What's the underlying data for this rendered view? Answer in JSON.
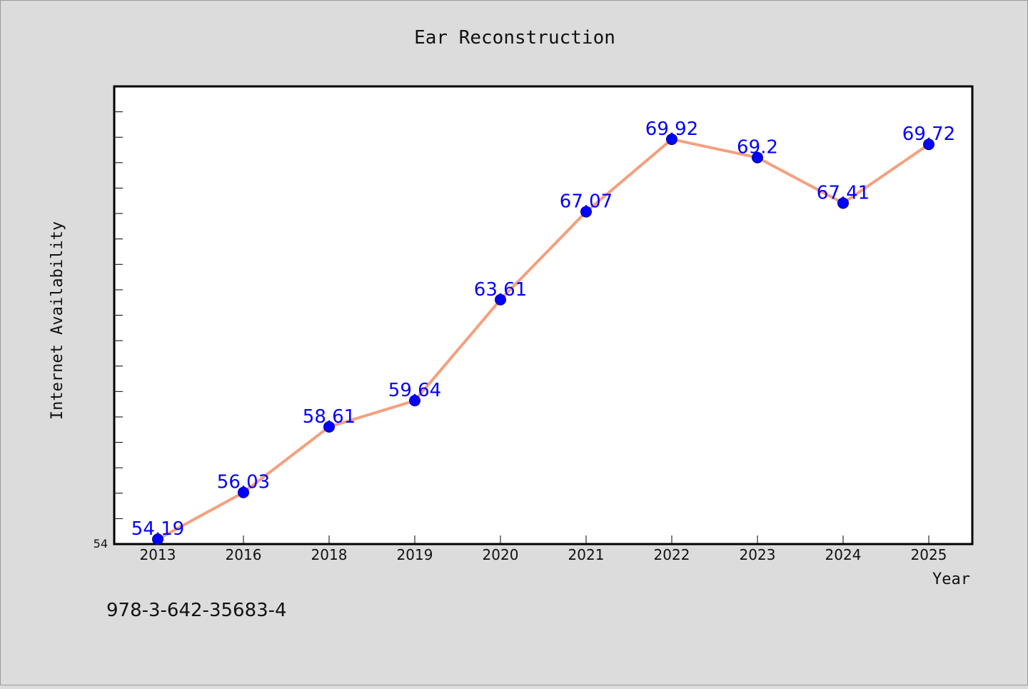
{
  "chart_data": {
    "type": "line",
    "title": "Ear Reconstruction",
    "xlabel": "Year",
    "ylabel": "Internet Availability",
    "categories": [
      "2013",
      "2016",
      "2018",
      "2019",
      "2020",
      "2021",
      "2022",
      "2023",
      "2024",
      "2025"
    ],
    "series": [
      {
        "values": [
          54.19,
          56.03,
          58.61,
          59.64,
          63.61,
          67.07,
          69.92,
          69.2,
          67.41,
          69.72
        ],
        "data_labels": [
          "54.19",
          "56.03",
          "58.61",
          "59.64",
          "63.61",
          "67.07",
          "69.92",
          "69.2",
          "67.41",
          "69.72"
        ]
      }
    ],
    "ylim": [
      54,
      72
    ],
    "y_tick_label": "54",
    "grid": false,
    "colors": {
      "line": "#f4a07e",
      "marker": "#0000ff",
      "data_label": "#0000ff",
      "background": "#dcdcdc",
      "plot_area": "#ffffff"
    }
  },
  "footer": {
    "isbn": "978-3-642-35683-4"
  }
}
